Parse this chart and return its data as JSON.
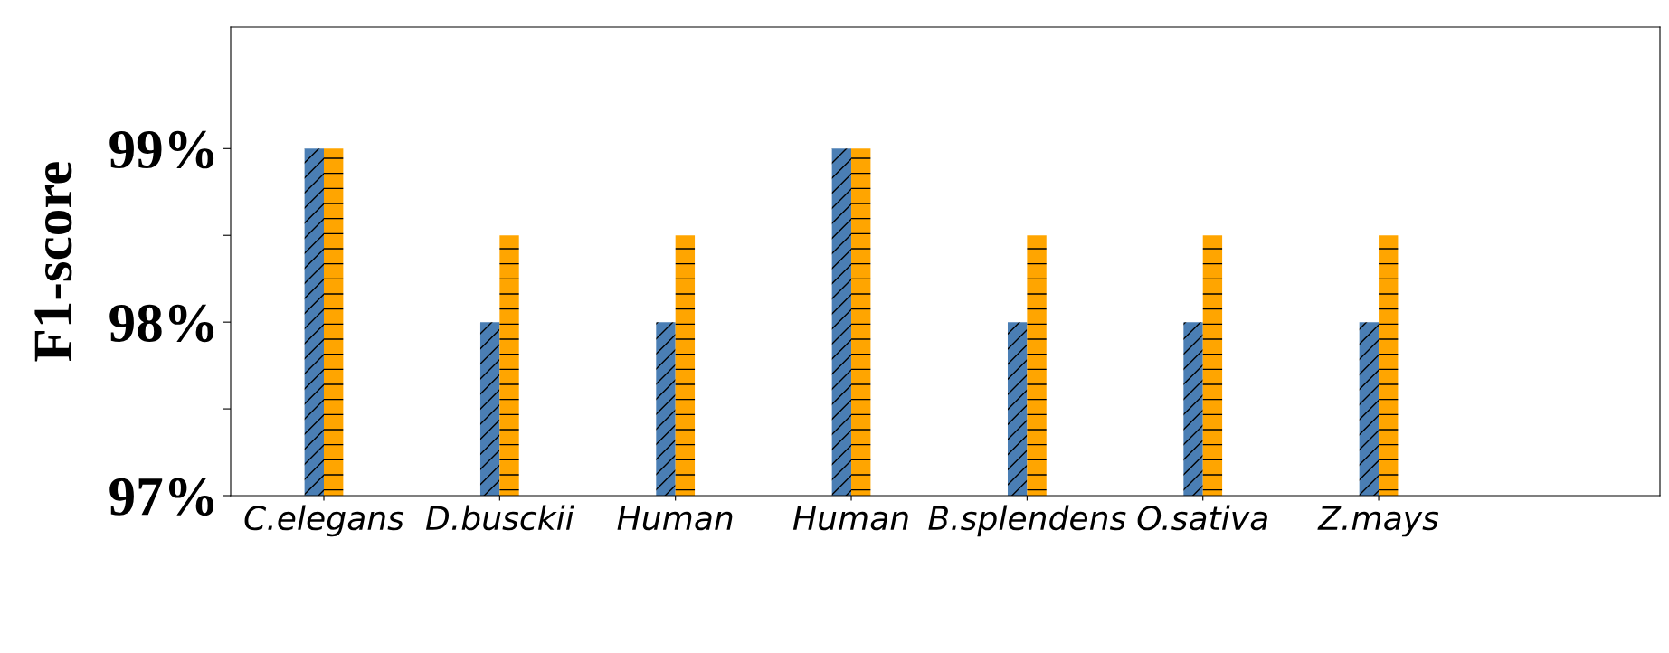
{
  "chart_data": {
    "type": "bar",
    "ylabel": "F1-score",
    "categories": [
      "C.elegans",
      "D.busckii",
      "Human",
      "Human",
      "B.splendens",
      "O.sativa",
      "Z.mays"
    ],
    "series": [
      {
        "color": "#4a7eb4",
        "values": [
          99,
          98,
          98,
          99,
          98,
          98,
          98
        ]
      },
      {
        "color": "#ffa500",
        "values": [
          99,
          98.5,
          98.5,
          99,
          98.5,
          98.5,
          98.5
        ]
      }
    ],
    "ylim": [
      97,
      99.7
    ],
    "yticks": [
      {
        "value": 97,
        "label": "97%"
      },
      {
        "value": 97.5,
        "label": null
      },
      {
        "value": 98,
        "label": "98%"
      },
      {
        "value": 98.5,
        "label": null
      },
      {
        "value": 99,
        "label": "99%"
      }
    ],
    "grid": false,
    "legend": false
  }
}
